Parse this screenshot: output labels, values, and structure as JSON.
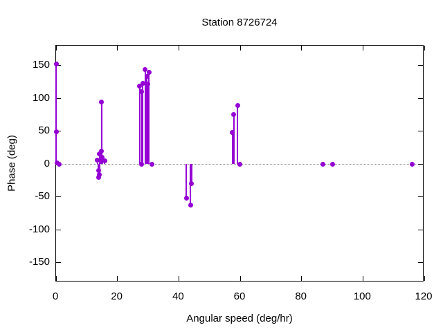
{
  "chart_data": {
    "type": "stem",
    "title": "Station 8726724",
    "xlabel": "Angular speed (deg/hr)",
    "ylabel": "Phase (deg)",
    "xlim": [
      0,
      120
    ],
    "ylim": [
      -180,
      180
    ],
    "xticks": [
      0,
      20,
      40,
      60,
      80,
      100,
      120
    ],
    "yticks": [
      -150,
      -100,
      -50,
      0,
      50,
      100,
      150
    ],
    "grid": false,
    "zero_line": true,
    "legend": "none",
    "point_color": "#9400d3",
    "zero_line_color": "#8a8a8a",
    "border_color": "#000000",
    "points": [
      [
        0,
        152
      ],
      [
        0,
        49
      ],
      [
        0.3,
        2
      ],
      [
        1,
        0
      ],
      [
        13.5,
        6
      ],
      [
        13.8,
        -10
      ],
      [
        13.8,
        -21
      ],
      [
        14.2,
        15
      ],
      [
        14.2,
        -16
      ],
      [
        14.7,
        20
      ],
      [
        14.8,
        94
      ],
      [
        15.1,
        10
      ],
      [
        15.8,
        5
      ],
      [
        27.2,
        118
      ],
      [
        27.9,
        110
      ],
      [
        27.9,
        0
      ],
      [
        28.3,
        123
      ],
      [
        29,
        144
      ],
      [
        29.6,
        133
      ],
      [
        29.9,
        122
      ],
      [
        30.3,
        139
      ],
      [
        31.2,
        0
      ],
      [
        42.5,
        -52
      ],
      [
        43.8,
        -63
      ],
      [
        44.1,
        -30
      ],
      [
        57.5,
        48
      ],
      [
        57.9,
        75
      ],
      [
        59.2,
        89
      ],
      [
        59.8,
        0
      ],
      [
        87,
        0
      ],
      [
        90,
        0
      ],
      [
        116,
        0
      ]
    ]
  }
}
